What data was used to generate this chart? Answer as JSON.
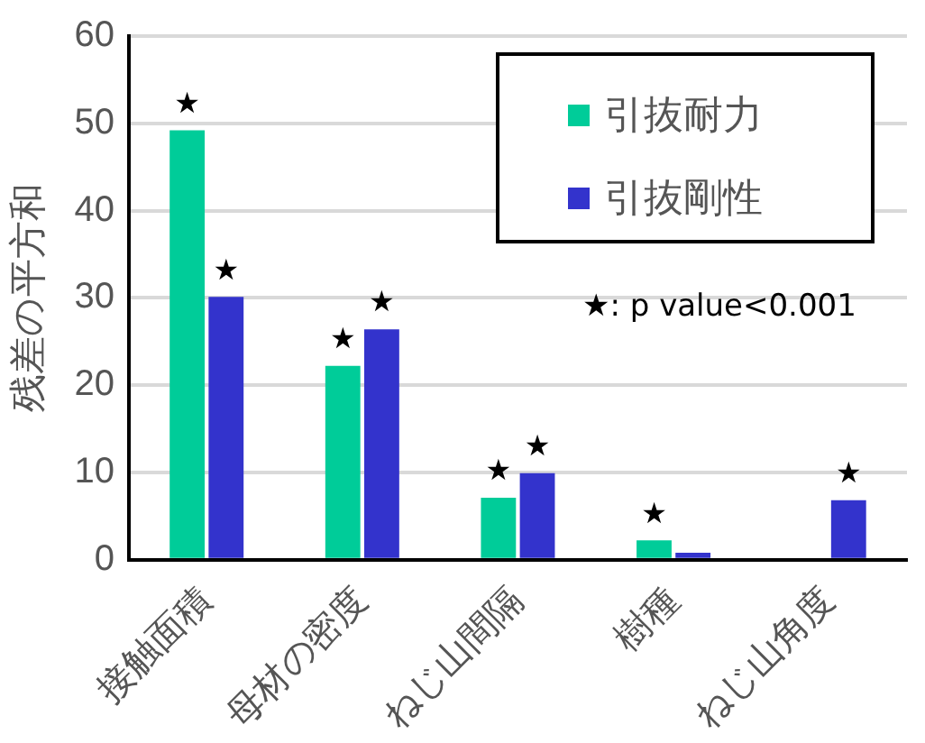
{
  "chart_data": {
    "type": "bar",
    "ylabel": "残差の平方和",
    "categories": [
      "接触面積",
      "母材の密度",
      "ねじ山間隔",
      "樹種",
      "ねじ山角度"
    ],
    "series": [
      {
        "name": "引抜耐力",
        "color": "#00cc99",
        "values": [
          49.2,
          22.2,
          7.1,
          2.2,
          null
        ],
        "value_labels": [
          "★",
          "★",
          "★",
          "★",
          null
        ]
      },
      {
        "name": "引抜剛性",
        "color": "#3333cc",
        "values": [
          30.1,
          26.4,
          9.9,
          0.8,
          6.8
        ],
        "value_labels": [
          "★",
          "★",
          "★",
          null,
          "★"
        ]
      }
    ],
    "ylim": [
      0,
      60
    ],
    "yticks": [
      0,
      10,
      20,
      30,
      40,
      50,
      60
    ],
    "grid": "y",
    "legend": "top right",
    "annotations": [
      "★: p value<0.001"
    ]
  }
}
